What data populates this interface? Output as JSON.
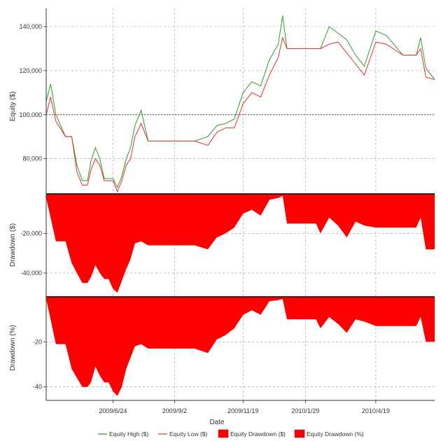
{
  "chart_data": {
    "type": "line",
    "xlabel": "Date",
    "x_ticks": [
      "2009/6/24",
      "2009/9/2",
      "2009/11/19",
      "2010/1/29",
      "2010/4/19"
    ],
    "x": [
      "2009/4/9",
      "2009/4/14",
      "2009/4/20",
      "2009/5/1",
      "2009/5/8",
      "2009/5/14",
      "2009/5/20",
      "2009/5/26",
      "2009/5/30",
      "2009/6/4",
      "2009/6/9",
      "2009/6/14",
      "2009/6/19",
      "2009/6/24",
      "2009/6/29",
      "2009/7/4",
      "2009/7/9",
      "2009/7/14",
      "2009/7/19",
      "2009/7/26",
      "2009/8/3",
      "2009/8/8",
      "2009/8/14",
      "2009/9/2",
      "2009/9/25",
      "2009/10/10",
      "2009/10/20",
      "2009/10/30",
      "2009/11/9",
      "2009/11/19",
      "2009/11/29",
      "2009/12/9",
      "2009/12/19",
      "2009/12/29",
      "2010/1/3",
      "2010/1/8",
      "2010/1/29",
      "2010/2/10",
      "2010/2/15",
      "2010/2/25",
      "2010/3/7",
      "2010/3/17",
      "2010/3/27",
      "2010/4/6",
      "2010/4/19",
      "2010/5/1",
      "2010/5/20",
      "2010/5/30",
      "2010/6/4",
      "2010/6/9",
      "2010/6/15",
      "2010/6/25"
    ],
    "panels": [
      {
        "ylabel": "Equity ($)",
        "y_ticks": [
          "80,000",
          "100,000",
          "120,000",
          "140,000"
        ],
        "ylim": [
          64000,
          147000
        ],
        "reference_line": 100000,
        "series": [
          {
            "name": "Equity High ($)",
            "color": "#2e9a2e",
            "values": [
              106000,
              114000,
              100000,
              90000,
              90000,
              77000,
              70000,
              70000,
              79000,
              85000,
              80000,
              71000,
              71000,
              71000,
              67000,
              72000,
              80000,
              85000,
              95000,
              102000,
              88000,
              88000,
              88000,
              88000,
              88000,
              90000,
              95000,
              96000,
              98000,
              110000,
              115000,
              113000,
              125000,
              132000,
              145000,
              130000,
              130000,
              130000,
              130000,
              140000,
              137000,
              134000,
              127000,
              122000,
              138000,
              136000,
              127000,
              127000,
              127000,
              135000,
              121000,
              116000
            ]
          },
          {
            "name": "Equity Low ($)",
            "color": "#e0302f",
            "values": [
              100000,
              108000,
              97000,
              90000,
              90000,
              74000,
              68000,
              68000,
              75000,
              80000,
              77000,
              70000,
              70000,
              70000,
              65000,
              70000,
              77000,
              80000,
              90000,
              96000,
              88000,
              88000,
              88000,
              88000,
              88000,
              86000,
              92000,
              94000,
              94000,
              105000,
              110000,
              108000,
              118000,
              126000,
              135000,
              130000,
              130000,
              130000,
              130000,
              132000,
              133000,
              128000,
              123000,
              118000,
              133000,
              132000,
              127000,
              127000,
              127000,
              130000,
              117000,
              116000
            ]
          }
        ]
      },
      {
        "ylabel": "Drawdown ($)",
        "y_ticks": [
          "-20,000",
          "-40,000"
        ],
        "ylim": [
          -52000,
          0
        ],
        "series": [
          {
            "name": "Equity Drawdown ($)",
            "color": "#ff0000",
            "values": [
              -2000,
              -12000,
              -24000,
              -24000,
              -35000,
              -40000,
              -45000,
              -45000,
              -42000,
              -36000,
              -40000,
              -43000,
              -43000,
              -48000,
              -50000,
              -44000,
              -38000,
              -33000,
              -25000,
              -24000,
              -26000,
              -26000,
              -26000,
              -26000,
              -26000,
              -28000,
              -22000,
              -20000,
              -17000,
              -10000,
              -8000,
              -11000,
              -3000,
              -2000,
              -1000,
              -15000,
              -15000,
              -15000,
              -20000,
              -12000,
              -16000,
              -22000,
              -14000,
              -16000,
              -17000,
              -17000,
              -17000,
              -17000,
              -17000,
              -12000,
              -28000,
              -28000
            ]
          }
        ]
      },
      {
        "ylabel": "Drawdown (%)",
        "y_ticks": [
          "-20",
          "-40"
        ],
        "ylim": [
          -46,
          0
        ],
        "series": [
          {
            "name": "Equity Drawdown (%)",
            "color": "#ff0000",
            "values": [
              -1,
              -10,
              -21,
              -21,
              -32,
              -36,
              -40,
              -40,
              -38,
              -31,
              -35,
              -38,
              -38,
              -42,
              -44,
              -40,
              -32,
              -27,
              -22,
              -21,
              -23,
              -23,
              -23,
              -23,
              -23,
              -25,
              -19,
              -17,
              -14,
              -8,
              -6,
              -8,
              -2,
              -1.5,
              -1,
              -10,
              -10,
              -10,
              -14,
              -9,
              -12,
              -16,
              -10,
              -11,
              -13,
              -13,
              -13,
              -13,
              -13,
              -9,
              -20,
              -20
            ]
          }
        ]
      }
    ],
    "legend": {
      "placement": "bottom",
      "items": [
        {
          "label": "Equity High ($)",
          "kind": "line",
          "color": "#2e9a2e"
        },
        {
          "label": "Equity Low ($)",
          "kind": "line",
          "color": "#e0302f"
        },
        {
          "label": "Equity Drawdown ($)",
          "kind": "area",
          "color": "#ff0000"
        },
        {
          "label": "Equity Drawdown (%)",
          "kind": "area",
          "color": "#ff0000"
        }
      ]
    },
    "grid": true
  }
}
